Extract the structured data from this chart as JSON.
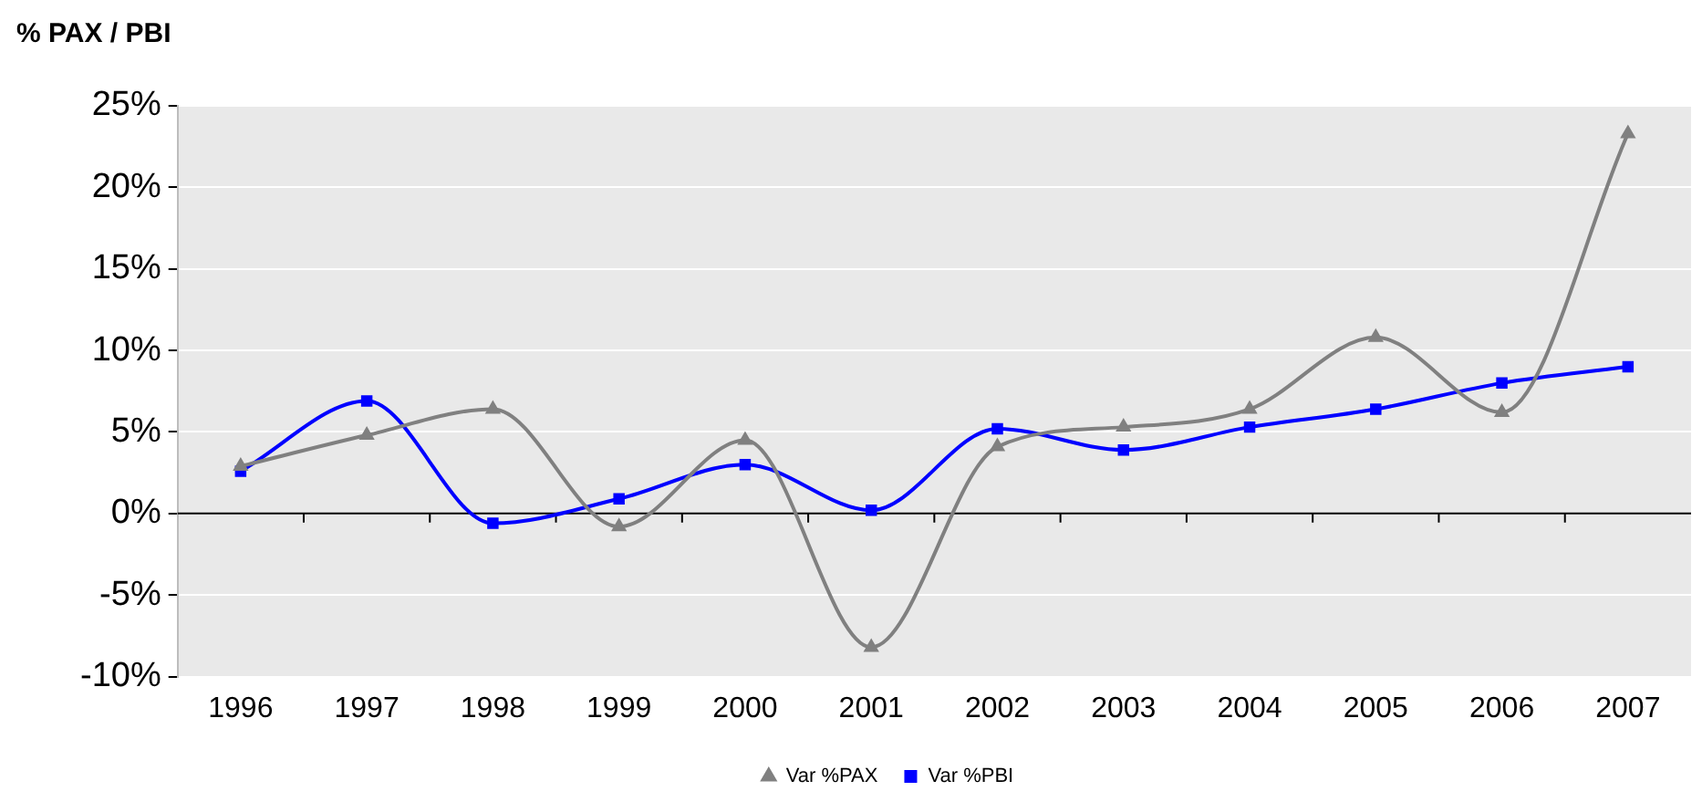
{
  "chart_data": {
    "type": "line",
    "title": "% PAX / PBI",
    "categories": [
      "1996",
      "1997",
      "1998",
      "1999",
      "2000",
      "2001",
      "2002",
      "2003",
      "2004",
      "2005",
      "2006",
      "2007"
    ],
    "series": [
      {
        "name": "Var %PAX",
        "color": "#808080",
        "marker": "triangle",
        "values": [
          2.9,
          4.8,
          6.4,
          -0.8,
          4.5,
          -8.2,
          4.1,
          5.3,
          6.4,
          10.8,
          6.2,
          23.3
        ]
      },
      {
        "name": "Var %PBI",
        "color": "#0000ff",
        "marker": "square",
        "values": [
          2.6,
          6.9,
          -0.6,
          0.9,
          3.0,
          0.2,
          5.2,
          3.9,
          5.3,
          6.4,
          8.0,
          9.0
        ]
      }
    ],
    "ylim": [
      -10,
      25
    ],
    "yticks": [
      {
        "value": -10,
        "label": "-10%"
      },
      {
        "value": -5,
        "label": "-5%"
      },
      {
        "value": 0,
        "label": "0%"
      },
      {
        "value": 5,
        "label": "5%"
      },
      {
        "value": 10,
        "label": "10%"
      },
      {
        "value": 15,
        "label": "15%"
      },
      {
        "value": 20,
        "label": "20%"
      },
      {
        "value": 25,
        "label": "25%"
      }
    ],
    "grid": "y",
    "legend": "bottom",
    "line_style": "solid"
  }
}
